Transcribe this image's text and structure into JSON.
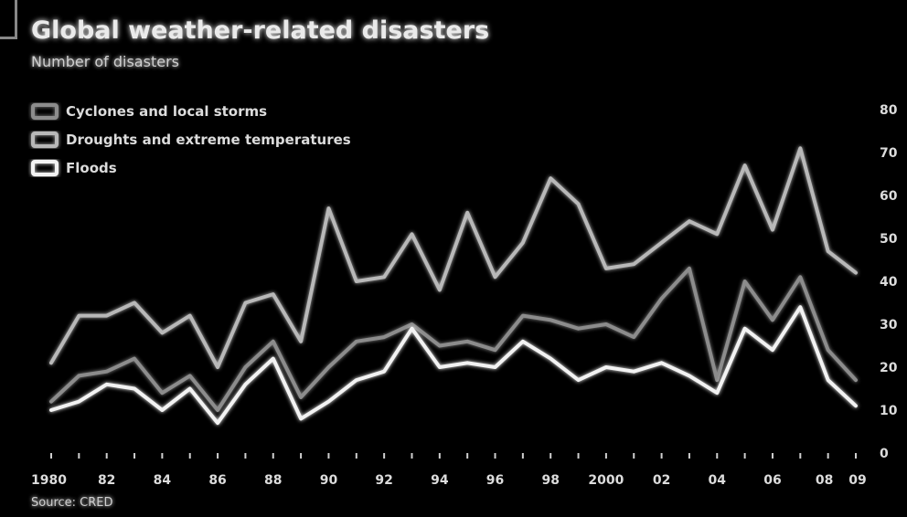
{
  "chart_data": {
    "type": "line",
    "title": "Global weather-related disasters",
    "subtitle": "Number of disasters",
    "source": "Source: CRED",
    "x_tick_labels": [
      "1980",
      "82",
      "84",
      "86",
      "88",
      "90",
      "92",
      "94",
      "96",
      "98",
      "2000",
      "02",
      "04",
      "06",
      "08",
      "09"
    ],
    "x": [
      1980,
      1981,
      1982,
      1983,
      1984,
      1985,
      1986,
      1987,
      1988,
      1989,
      1990,
      1991,
      1992,
      1993,
      1994,
      1995,
      1996,
      1997,
      1998,
      1999,
      2000,
      2001,
      2002,
      2003,
      2004,
      2005,
      2006,
      2007,
      2008,
      2009
    ],
    "ylim": [
      0,
      80
    ],
    "y_ticks": [
      0,
      10,
      20,
      30,
      40,
      50,
      60,
      70,
      80
    ],
    "y_axis_side": "right",
    "grid": true,
    "legend_position": "top-left",
    "series": [
      {
        "name": "Cyclones and local storms",
        "color": "#8c8c8c",
        "values": [
          12,
          18,
          19,
          22,
          14,
          18,
          10,
          20,
          26,
          13,
          20,
          26,
          27,
          30,
          25,
          26,
          24,
          32,
          31,
          29,
          30,
          27,
          36,
          43,
          17,
          40,
          31,
          41,
          24,
          17
        ]
      },
      {
        "name": "Droughts and extreme temperatures",
        "color": "#b8b8b8",
        "values": [
          21,
          32,
          32,
          35,
          28,
          32,
          20,
          35,
          37,
          26,
          57,
          40,
          41,
          51,
          38,
          56,
          41,
          49,
          64,
          58,
          43,
          44,
          49,
          54,
          51,
          67,
          52,
          71,
          47,
          42
        ]
      },
      {
        "name": "Floods",
        "color": "#f2f2f2",
        "values": [
          10,
          12,
          16,
          15,
          10,
          15,
          7,
          16,
          22,
          8,
          12,
          17,
          19,
          29,
          20,
          21,
          20,
          26,
          22,
          17,
          20,
          19,
          21,
          18,
          14,
          29,
          24,
          34,
          17,
          11
        ]
      }
    ]
  }
}
